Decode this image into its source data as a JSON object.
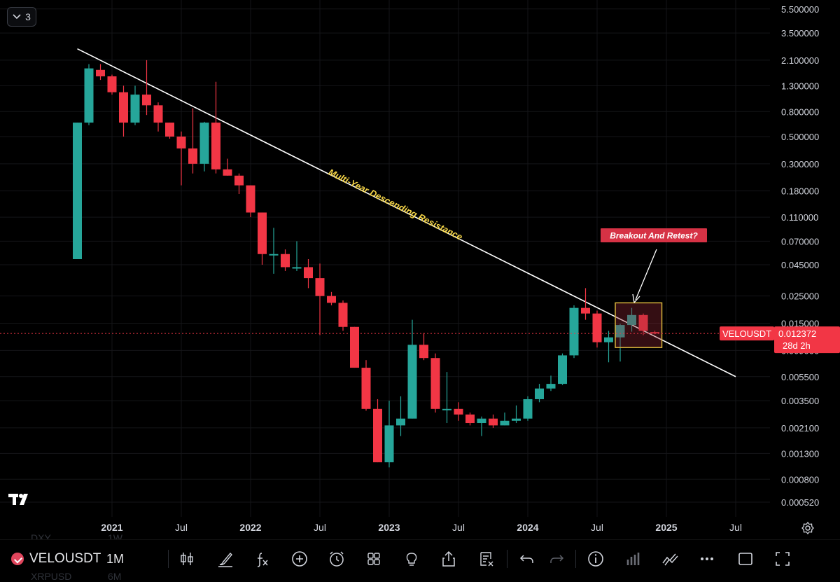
{
  "collapse_button": {
    "count": "3",
    "icon": "chevron-down-icon"
  },
  "colors": {
    "up": "#26a69a",
    "down": "#f23645",
    "background": "#000000",
    "trendline": "#ffffff",
    "annotation_text": "#f5d547",
    "highlight_box": "#d4b23b",
    "price_line": "#f23645"
  },
  "chart_data": {
    "type": "candlestick",
    "symbol": "VELOUSDT",
    "interval": "1M",
    "y_scale": "log",
    "ylim": [
      0.00045,
      5.5
    ],
    "y_ticks": [
      "5.500000",
      "3.500000",
      "2.100000",
      "1.300000",
      "0.800000",
      "0.500000",
      "0.300000",
      "0.180000",
      "0.110000",
      "0.070000",
      "0.045000",
      "0.025000",
      "0.015000",
      "0.009000",
      "0.005500",
      "0.003500",
      "0.002100",
      "0.001300",
      "0.000800",
      "0.000520"
    ],
    "x_ticks": [
      "2021",
      "Jul",
      "2022",
      "Jul",
      "2023",
      "Jul",
      "2024",
      "Jul",
      "2025",
      "Jul"
    ],
    "candles": [
      {
        "t": "2020-10",
        "o": 0.05,
        "h": 0.65,
        "l": 0.05,
        "c": 0.65
      },
      {
        "t": "2020-11",
        "o": 0.65,
        "h": 1.95,
        "l": 0.62,
        "c": 1.8
      },
      {
        "t": "2020-12",
        "o": 1.75,
        "h": 1.95,
        "l": 1.45,
        "c": 1.55
      },
      {
        "t": "2021-01",
        "o": 1.55,
        "h": 1.6,
        "l": 1.1,
        "c": 1.15
      },
      {
        "t": "2021-02",
        "o": 1.15,
        "h": 1.3,
        "l": 0.5,
        "c": 0.65
      },
      {
        "t": "2021-03",
        "o": 0.65,
        "h": 1.3,
        "l": 0.62,
        "c": 1.1
      },
      {
        "t": "2021-04",
        "o": 1.1,
        "h": 2.1,
        "l": 0.75,
        "c": 0.9
      },
      {
        "t": "2021-05",
        "o": 0.9,
        "h": 0.95,
        "l": 0.55,
        "c": 0.65
      },
      {
        "t": "2021-06",
        "o": 0.65,
        "h": 0.65,
        "l": 0.48,
        "c": 0.5
      },
      {
        "t": "2021-07",
        "o": 0.5,
        "h": 0.55,
        "l": 0.2,
        "c": 0.4
      },
      {
        "t": "2021-08",
        "o": 0.4,
        "h": 0.85,
        "l": 0.25,
        "c": 0.3
      },
      {
        "t": "2021-09",
        "o": 0.3,
        "h": 0.66,
        "l": 0.26,
        "c": 0.65
      },
      {
        "t": "2021-10",
        "o": 0.65,
        "h": 1.4,
        "l": 0.25,
        "c": 0.27
      },
      {
        "t": "2021-11",
        "o": 0.27,
        "h": 0.33,
        "l": 0.24,
        "c": 0.24
      },
      {
        "t": "2021-12",
        "o": 0.24,
        "h": 0.25,
        "l": 0.17,
        "c": 0.2
      },
      {
        "t": "2022-01",
        "o": 0.2,
        "h": 0.2,
        "l": 0.11,
        "c": 0.12
      },
      {
        "t": "2022-02",
        "o": 0.12,
        "h": 0.12,
        "l": 0.045,
        "c": 0.055
      },
      {
        "t": "2022-03",
        "o": 0.055,
        "h": 0.09,
        "l": 0.038,
        "c": 0.055
      },
      {
        "t": "2022-04",
        "o": 0.055,
        "h": 0.06,
        "l": 0.04,
        "c": 0.043
      },
      {
        "t": "2022-05",
        "o": 0.043,
        "h": 0.07,
        "l": 0.04,
        "c": 0.043
      },
      {
        "t": "2022-06",
        "o": 0.043,
        "h": 0.05,
        "l": 0.029,
        "c": 0.035
      },
      {
        "t": "2022-07",
        "o": 0.035,
        "h": 0.046,
        "l": 0.012,
        "c": 0.025
      },
      {
        "t": "2022-08",
        "o": 0.025,
        "h": 0.027,
        "l": 0.021,
        "c": 0.022
      },
      {
        "t": "2022-09",
        "o": 0.022,
        "h": 0.023,
        "l": 0.013,
        "c": 0.014
      },
      {
        "t": "2022-10",
        "o": 0.014,
        "h": 0.014,
        "l": 0.0065,
        "c": 0.0065
      },
      {
        "t": "2022-11",
        "o": 0.0065,
        "h": 0.0075,
        "l": 0.0029,
        "c": 0.003
      },
      {
        "t": "2022-12",
        "o": 0.003,
        "h": 0.0036,
        "l": 0.0011,
        "c": 0.0011
      },
      {
        "t": "2023-01",
        "o": 0.0011,
        "h": 0.0035,
        "l": 0.001,
        "c": 0.0022
      },
      {
        "t": "2023-02",
        "o": 0.0022,
        "h": 0.0038,
        "l": 0.0018,
        "c": 0.0025
      },
      {
        "t": "2023-03",
        "o": 0.0025,
        "h": 0.016,
        "l": 0.0025,
        "c": 0.01
      },
      {
        "t": "2023-04",
        "o": 0.01,
        "h": 0.0125,
        "l": 0.0075,
        "c": 0.0078
      },
      {
        "t": "2023-05",
        "o": 0.0078,
        "h": 0.0085,
        "l": 0.0028,
        "c": 0.003
      },
      {
        "t": "2023-06",
        "o": 0.003,
        "h": 0.006,
        "l": 0.0023,
        "c": 0.003
      },
      {
        "t": "2023-07",
        "o": 0.003,
        "h": 0.0034,
        "l": 0.0024,
        "c": 0.0027
      },
      {
        "t": "2023-08",
        "o": 0.0027,
        "h": 0.0028,
        "l": 0.0022,
        "c": 0.0023
      },
      {
        "t": "2023-09",
        "o": 0.0023,
        "h": 0.0026,
        "l": 0.0018,
        "c": 0.0025
      },
      {
        "t": "2023-10",
        "o": 0.0025,
        "h": 0.0027,
        "l": 0.0021,
        "c": 0.0022
      },
      {
        "t": "2023-11",
        "o": 0.0022,
        "h": 0.0028,
        "l": 0.0022,
        "c": 0.0024
      },
      {
        "t": "2023-12",
        "o": 0.0024,
        "h": 0.0032,
        "l": 0.0023,
        "c": 0.0025
      },
      {
        "t": "2024-01",
        "o": 0.0025,
        "h": 0.0038,
        "l": 0.0024,
        "c": 0.0036
      },
      {
        "t": "2024-02",
        "o": 0.0036,
        "h": 0.0048,
        "l": 0.0034,
        "c": 0.0044
      },
      {
        "t": "2024-03",
        "o": 0.0044,
        "h": 0.0056,
        "l": 0.0042,
        "c": 0.0048
      },
      {
        "t": "2024-04",
        "o": 0.0048,
        "h": 0.0085,
        "l": 0.0047,
        "c": 0.0082
      },
      {
        "t": "2024-05",
        "o": 0.0082,
        "h": 0.021,
        "l": 0.0078,
        "c": 0.02
      },
      {
        "t": "2024-06",
        "o": 0.02,
        "h": 0.029,
        "l": 0.016,
        "c": 0.018
      },
      {
        "t": "2024-07",
        "o": 0.018,
        "h": 0.019,
        "l": 0.0095,
        "c": 0.0105
      },
      {
        "t": "2024-08",
        "o": 0.0105,
        "h": 0.013,
        "l": 0.0072,
        "c": 0.0115
      },
      {
        "t": "2024-09",
        "o": 0.0115,
        "h": 0.0148,
        "l": 0.0073,
        "c": 0.0145
      },
      {
        "t": "2024-10",
        "o": 0.0145,
        "h": 0.02,
        "l": 0.0128,
        "c": 0.0175
      },
      {
        "t": "2024-11",
        "o": 0.0175,
        "h": 0.018,
        "l": 0.012,
        "c": 0.013
      },
      {
        "t": "2024-12",
        "o": 0.0127,
        "h": 0.013,
        "l": 0.0122,
        "c": 0.012372
      }
    ],
    "trendline": {
      "label": "Multi-Year Descending Resistance",
      "from": {
        "t": "2020-10",
        "price": 2.6
      },
      "to": {
        "t": "2025-07",
        "price": 0.0055
      }
    },
    "annotation": {
      "text": "Breakout And Retest?"
    },
    "highlight_box": {
      "from_t": "2024-09",
      "to_t": "2024-12",
      "price_top": 0.022,
      "price_bottom": 0.0095
    },
    "last_price": {
      "label": "VELOUSDT",
      "value": "0.012372",
      "countdown": "28d 2h"
    }
  },
  "bottom_toolbar": {
    "symbol": "VELOUSDT",
    "interval": "1M",
    "ghost_above": [
      "DXY",
      "1W"
    ],
    "ghost_below": [
      "XRPUSD",
      "6M"
    ],
    "tools": [
      "candles-icon",
      "brush-icon",
      "fx-icon",
      "plus-circle-icon",
      "alarm-icon",
      "grid-icon",
      "lightbulb-icon",
      "share-icon",
      "watchlist-icon",
      "undo-icon",
      "redo-icon",
      "info-icon",
      "bars-icon",
      "replay-icon",
      "more-icon",
      "square-icon",
      "fullscreen-icon"
    ]
  }
}
